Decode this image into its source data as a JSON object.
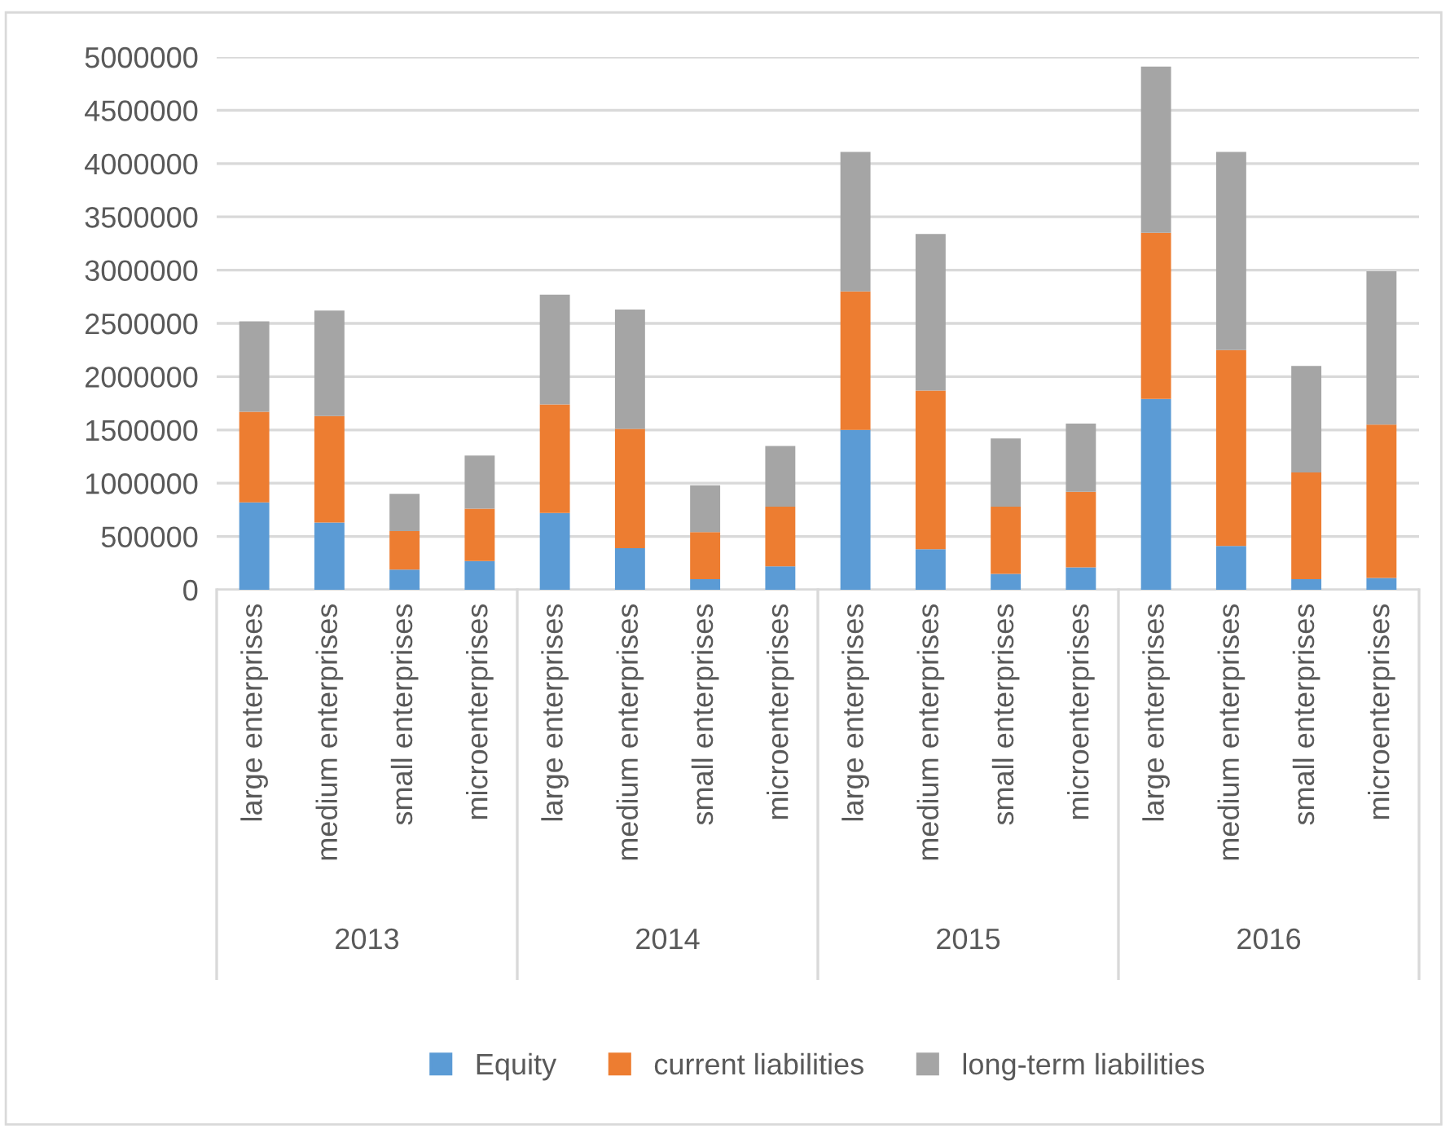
{
  "chart_data": {
    "type": "bar",
    "stacked": true,
    "categories": [
      "large enterprises",
      "medium enterprises",
      "small enterprises",
      "microenterprises",
      "large enterprises",
      "medium enterprises",
      "small enterprises",
      "microenterprises",
      "large enterprises",
      "medium enterprises",
      "small enterprises",
      "microenterprises",
      "large enterprises",
      "medium enterprises",
      "small enterprises",
      "microenterprises"
    ],
    "annotations": [
      "2013",
      "2014",
      "2015",
      "2016"
    ],
    "series": [
      {
        "name": "Equity",
        "color": "#5b9bd5",
        "values": [
          820000,
          630000,
          190000,
          270000,
          720000,
          390000,
          100000,
          220000,
          1500000,
          380000,
          150000,
          210000,
          1790000,
          410000,
          100000,
          110000
        ]
      },
      {
        "name": "current liabilities",
        "color": "#ed7d31",
        "values": [
          850000,
          1000000,
          360000,
          490000,
          1020000,
          1120000,
          440000,
          560000,
          1300000,
          1490000,
          630000,
          710000,
          1560000,
          1840000,
          1000000,
          1440000
        ]
      },
      {
        "name": "long-term liabilities",
        "color": "#a5a5a5",
        "values": [
          850000,
          990000,
          350000,
          500000,
          1030000,
          1120000,
          440000,
          570000,
          1310000,
          1470000,
          640000,
          640000,
          1560000,
          1860000,
          1000000,
          1440000
        ]
      }
    ],
    "ylim": [
      0,
      5000000
    ],
    "yticks": [
      0,
      500000,
      1000000,
      1500000,
      2000000,
      2500000,
      3000000,
      3500000,
      4000000,
      4500000,
      5000000
    ],
    "grid": "y",
    "legend": "bottom"
  }
}
